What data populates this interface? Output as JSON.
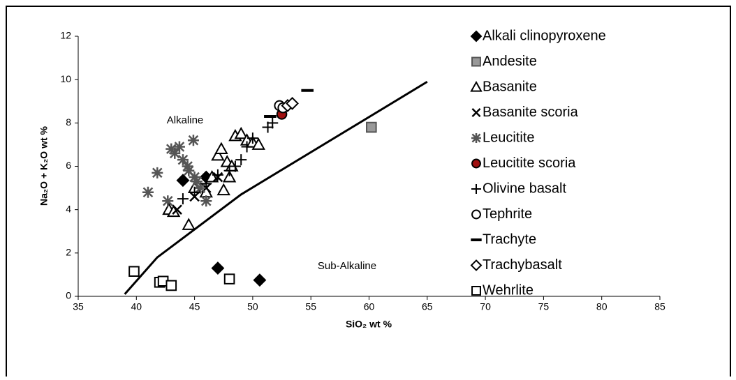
{
  "chart_data": {
    "type": "scatter",
    "x_label": "SiO₂ wt %",
    "y_label": "Na₂O + K₂O wt %",
    "xlim": [
      35,
      85
    ],
    "ylim": [
      0,
      12
    ],
    "xticks": [
      35,
      40,
      45,
      50,
      55,
      60,
      65,
      70,
      75,
      80,
      85
    ],
    "yticks": [
      0,
      2,
      4,
      6,
      8,
      10,
      12
    ],
    "grid": false,
    "legend": "right",
    "annotations": [
      "Alkaline",
      "Sub-Alkaline"
    ],
    "boundary": {
      "x": [
        39,
        41.8,
        49,
        65
      ],
      "y": [
        0.1,
        1.8,
        4.7,
        9.9
      ],
      "color": "#000000"
    },
    "series": [
      {
        "name": "Alkali clinopyroxene",
        "marker": "diamond",
        "color": "#000000",
        "fill": "#000000",
        "x": [
          44,
          46,
          47,
          50.6
        ],
        "values": [
          5.35,
          5.5,
          1.3,
          0.75
        ]
      },
      {
        "name": "Andesite",
        "marker": "square",
        "color": "#555555",
        "fill": "#999999",
        "x": [
          60.2
        ],
        "values": [
          7.8
        ]
      },
      {
        "name": "Basanite",
        "marker": "triangle",
        "color": "#000000",
        "fill": "#ffffff",
        "x": [
          42.8,
          43.2,
          44.5,
          46,
          47,
          47.5,
          48,
          48.5,
          49,
          49.5,
          50,
          50.5,
          47.8,
          45,
          46.5,
          48.2,
          47.3
        ],
        "values": [
          4.0,
          3.9,
          3.3,
          4.8,
          6.5,
          4.9,
          5.5,
          7.4,
          7.5,
          7.2,
          7.1,
          7.0,
          6.2,
          5.0,
          5.5,
          6.0,
          6.8
        ]
      },
      {
        "name": "Basanite scoria",
        "marker": "x",
        "color": "#000000",
        "fill": "none",
        "x": [
          43.5,
          45,
          46,
          47
        ],
        "values": [
          4.0,
          4.6,
          5.0,
          5.5
        ]
      },
      {
        "name": "Leucitite",
        "marker": "asterisk",
        "color": "#555555",
        "fill": "none",
        "x": [
          41,
          41.8,
          42.7,
          43,
          43.3,
          43.7,
          44,
          44.4,
          44.9,
          45,
          45.5,
          46,
          44.5,
          45.2
        ],
        "values": [
          4.8,
          5.7,
          4.4,
          6.8,
          6.6,
          6.9,
          6.3,
          6.0,
          7.2,
          5.5,
          5.0,
          4.4,
          5.8,
          5.3
        ]
      },
      {
        "name": "Leucitite scoria",
        "marker": "circle",
        "color": "#000000",
        "fill": "#a01010",
        "x": [
          52.5
        ],
        "values": [
          8.4
        ]
      },
      {
        "name": "Olivine basalt",
        "marker": "plus",
        "color": "#000000",
        "fill": "none",
        "x": [
          44,
          45,
          46,
          47,
          48,
          48.5,
          49,
          49.5,
          50,
          51.3,
          51.7
        ],
        "values": [
          4.5,
          4.8,
          5.2,
          5.6,
          5.8,
          6.0,
          6.3,
          6.9,
          7.3,
          7.8,
          8.0
        ]
      },
      {
        "name": "Tephrite",
        "marker": "circle",
        "color": "#000000",
        "fill": "#ffffff",
        "x": [
          52.3,
          52.6
        ],
        "values": [
          8.8,
          8.7
        ]
      },
      {
        "name": "Trachyte",
        "marker": "dash",
        "color": "#000000",
        "fill": "none",
        "x": [
          51.5,
          54.7
        ],
        "values": [
          8.3,
          9.5
        ]
      },
      {
        "name": "Trachybasalt",
        "marker": "diamond",
        "color": "#000000",
        "fill": "#ffffff",
        "x": [
          53,
          53.4
        ],
        "values": [
          8.8,
          8.9
        ]
      },
      {
        "name": "Wehrlite",
        "marker": "square",
        "color": "#000000",
        "fill": "#ffffff",
        "x": [
          39.8,
          42,
          42.3,
          43,
          48
        ],
        "values": [
          1.15,
          0.65,
          0.7,
          0.5,
          0.8
        ]
      }
    ]
  }
}
